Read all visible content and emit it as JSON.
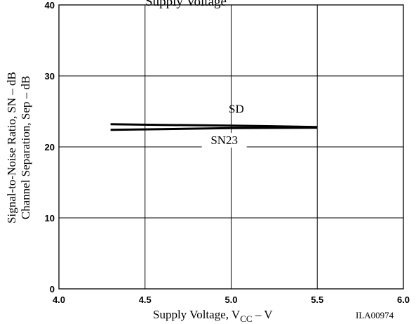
{
  "chart_data": {
    "type": "line",
    "title": "Supply Voltage",
    "xlabel": "Supply Voltage, V",
    "xlabel_sub": "CC",
    "xlabel_tail": " – V",
    "ylabel_line1": "Signal-to-Noise Ratio, SN – dB",
    "ylabel_line2": "Channel Separation, Sep – dB",
    "xlim": [
      4.0,
      6.0
    ],
    "ylim": [
      0,
      40
    ],
    "x_ticks": [
      "4.0",
      "4.5",
      "5.0",
      "5.5",
      "6.0"
    ],
    "y_ticks": [
      "0",
      "10",
      "20",
      "30",
      "40"
    ],
    "grid": true,
    "series": [
      {
        "name": "SD",
        "x": [
          4.3,
          4.6,
          5.0,
          5.5
        ],
        "y": [
          23.2,
          23.1,
          23.0,
          22.8
        ]
      },
      {
        "name": "SN23",
        "x": [
          4.3,
          4.6,
          5.0,
          5.5
        ],
        "y": [
          22.4,
          22.5,
          22.65,
          22.7
        ]
      }
    ],
    "series_label_pos": [
      {
        "x": 5.03,
        "y": 24.8
      },
      {
        "x": 4.96,
        "y": 20.4
      }
    ],
    "figure_id": "ILA00974",
    "line_color": "#000000"
  }
}
